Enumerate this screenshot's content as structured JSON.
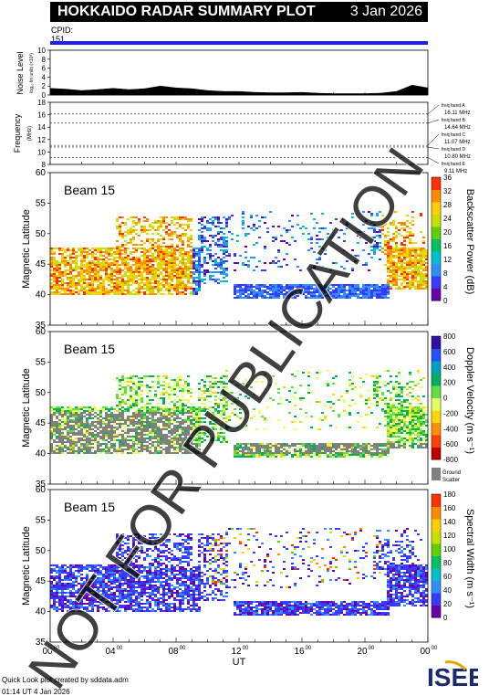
{
  "header": {
    "title": "HOKKAIDO RADAR SUMMARY PLOT",
    "date": "3 Jan 2026"
  },
  "cpid": {
    "label": "CPID:",
    "value": "151"
  },
  "colors": {
    "cpid_bar": "#2020ee",
    "ground_scatter": "#808080"
  },
  "noise_panel": {
    "label": "Noise Level",
    "sublabel": "log₁₀ lin units (×10³)",
    "ticks": [
      "0",
      "2",
      "4",
      "6",
      "8",
      "10"
    ]
  },
  "freq_panel": {
    "label": "Frequency",
    "unit": "(MHz)",
    "ticks": [
      "8",
      "10",
      "12",
      "14",
      "16",
      "18"
    ],
    "bands": [
      {
        "name": "freq band A",
        "value": "16.11 MHz"
      },
      {
        "name": "freq band B",
        "value": "14.64 MHz"
      },
      {
        "name": "freq band C",
        "value": "11.07 MHz"
      },
      {
        "name": "freq band D",
        "value": "10.80 MHz"
      },
      {
        "name": "freq band E",
        "value": "9.11 MHz"
      }
    ]
  },
  "panels": [
    {
      "beam": "Beam 15",
      "ylabel": "Magnetic Latitude",
      "yticks": [
        "35",
        "40",
        "45",
        "50",
        "55",
        "60"
      ],
      "cbar_label": "Backscatter Power (dB)",
      "cbar_ticks": [
        "0",
        "4",
        "8",
        "12",
        "16",
        "20",
        "24",
        "28",
        "32",
        "36"
      ]
    },
    {
      "beam": "Beam 15",
      "ylabel": "Magnetic Latitude",
      "yticks": [
        "35",
        "40",
        "45",
        "50",
        "55",
        "60"
      ],
      "cbar_label": "Doppler Velocity (m s⁻¹)",
      "cbar_ticks": [
        "-800",
        "-600",
        "-400",
        "-200",
        "0",
        "200",
        "400",
        "600",
        "800"
      ],
      "ground_label": "Ground",
      "ground_label2": "Scatter"
    },
    {
      "beam": "Beam 15",
      "ylabel": "Magnetic Latitude",
      "yticks": [
        "35",
        "40",
        "45",
        "50",
        "55",
        "60"
      ],
      "cbar_label": "Spectral Width (m s⁻¹)",
      "cbar_ticks": [
        "0",
        "20",
        "40",
        "60",
        "80",
        "100",
        "120",
        "140",
        "160",
        "180"
      ]
    }
  ],
  "xaxis": {
    "ticks": [
      "00",
      "04",
      "08",
      "12",
      "16",
      "20",
      "00"
    ],
    "tick_sup": "00",
    "label": "UT"
  },
  "watermark": "NOT FOR PUBLICATION",
  "footer": {
    "line1": "Quick Look plot created by sddata.adm",
    "line2": "01:14 UT  4 Jan 2026"
  },
  "logo": {
    "text": "ISEE"
  },
  "chart_data": [
    {
      "type": "area",
      "name": "noise",
      "x_hours": [
        0,
        1,
        2,
        3,
        4,
        5,
        6,
        7,
        8,
        9,
        10,
        11,
        12,
        13,
        14,
        15,
        16,
        17,
        18,
        19,
        20,
        21,
        22,
        23,
        24
      ],
      "values": [
        1.5,
        1.3,
        1.0,
        1.2,
        1.5,
        1.2,
        1.4,
        2.0,
        1.6,
        1.4,
        1.0,
        0.8,
        0.8,
        0.6,
        0.5,
        0.5,
        0.6,
        0.4,
        0.3,
        0.3,
        0.3,
        0.4,
        0.8,
        2.2,
        1.6
      ],
      "ylim": [
        0,
        10
      ]
    },
    {
      "type": "line",
      "name": "frequency",
      "y_values_mhz": [
        16.11,
        14.64,
        11.07,
        10.8,
        9.11
      ],
      "ylim": [
        8,
        18
      ]
    },
    {
      "type": "heatmap",
      "name": "backscatter_power",
      "x_range_hours": [
        0,
        24
      ],
      "ylim": [
        35,
        60
      ],
      "zlim": [
        0,
        36
      ]
    },
    {
      "type": "heatmap",
      "name": "doppler_velocity",
      "x_range_hours": [
        0,
        24
      ],
      "ylim": [
        35,
        60
      ],
      "zlim": [
        -800,
        800
      ]
    },
    {
      "type": "heatmap",
      "name": "spectral_width",
      "x_range_hours": [
        0,
        24
      ],
      "ylim": [
        35,
        60
      ],
      "zlim": [
        0,
        180
      ]
    }
  ]
}
